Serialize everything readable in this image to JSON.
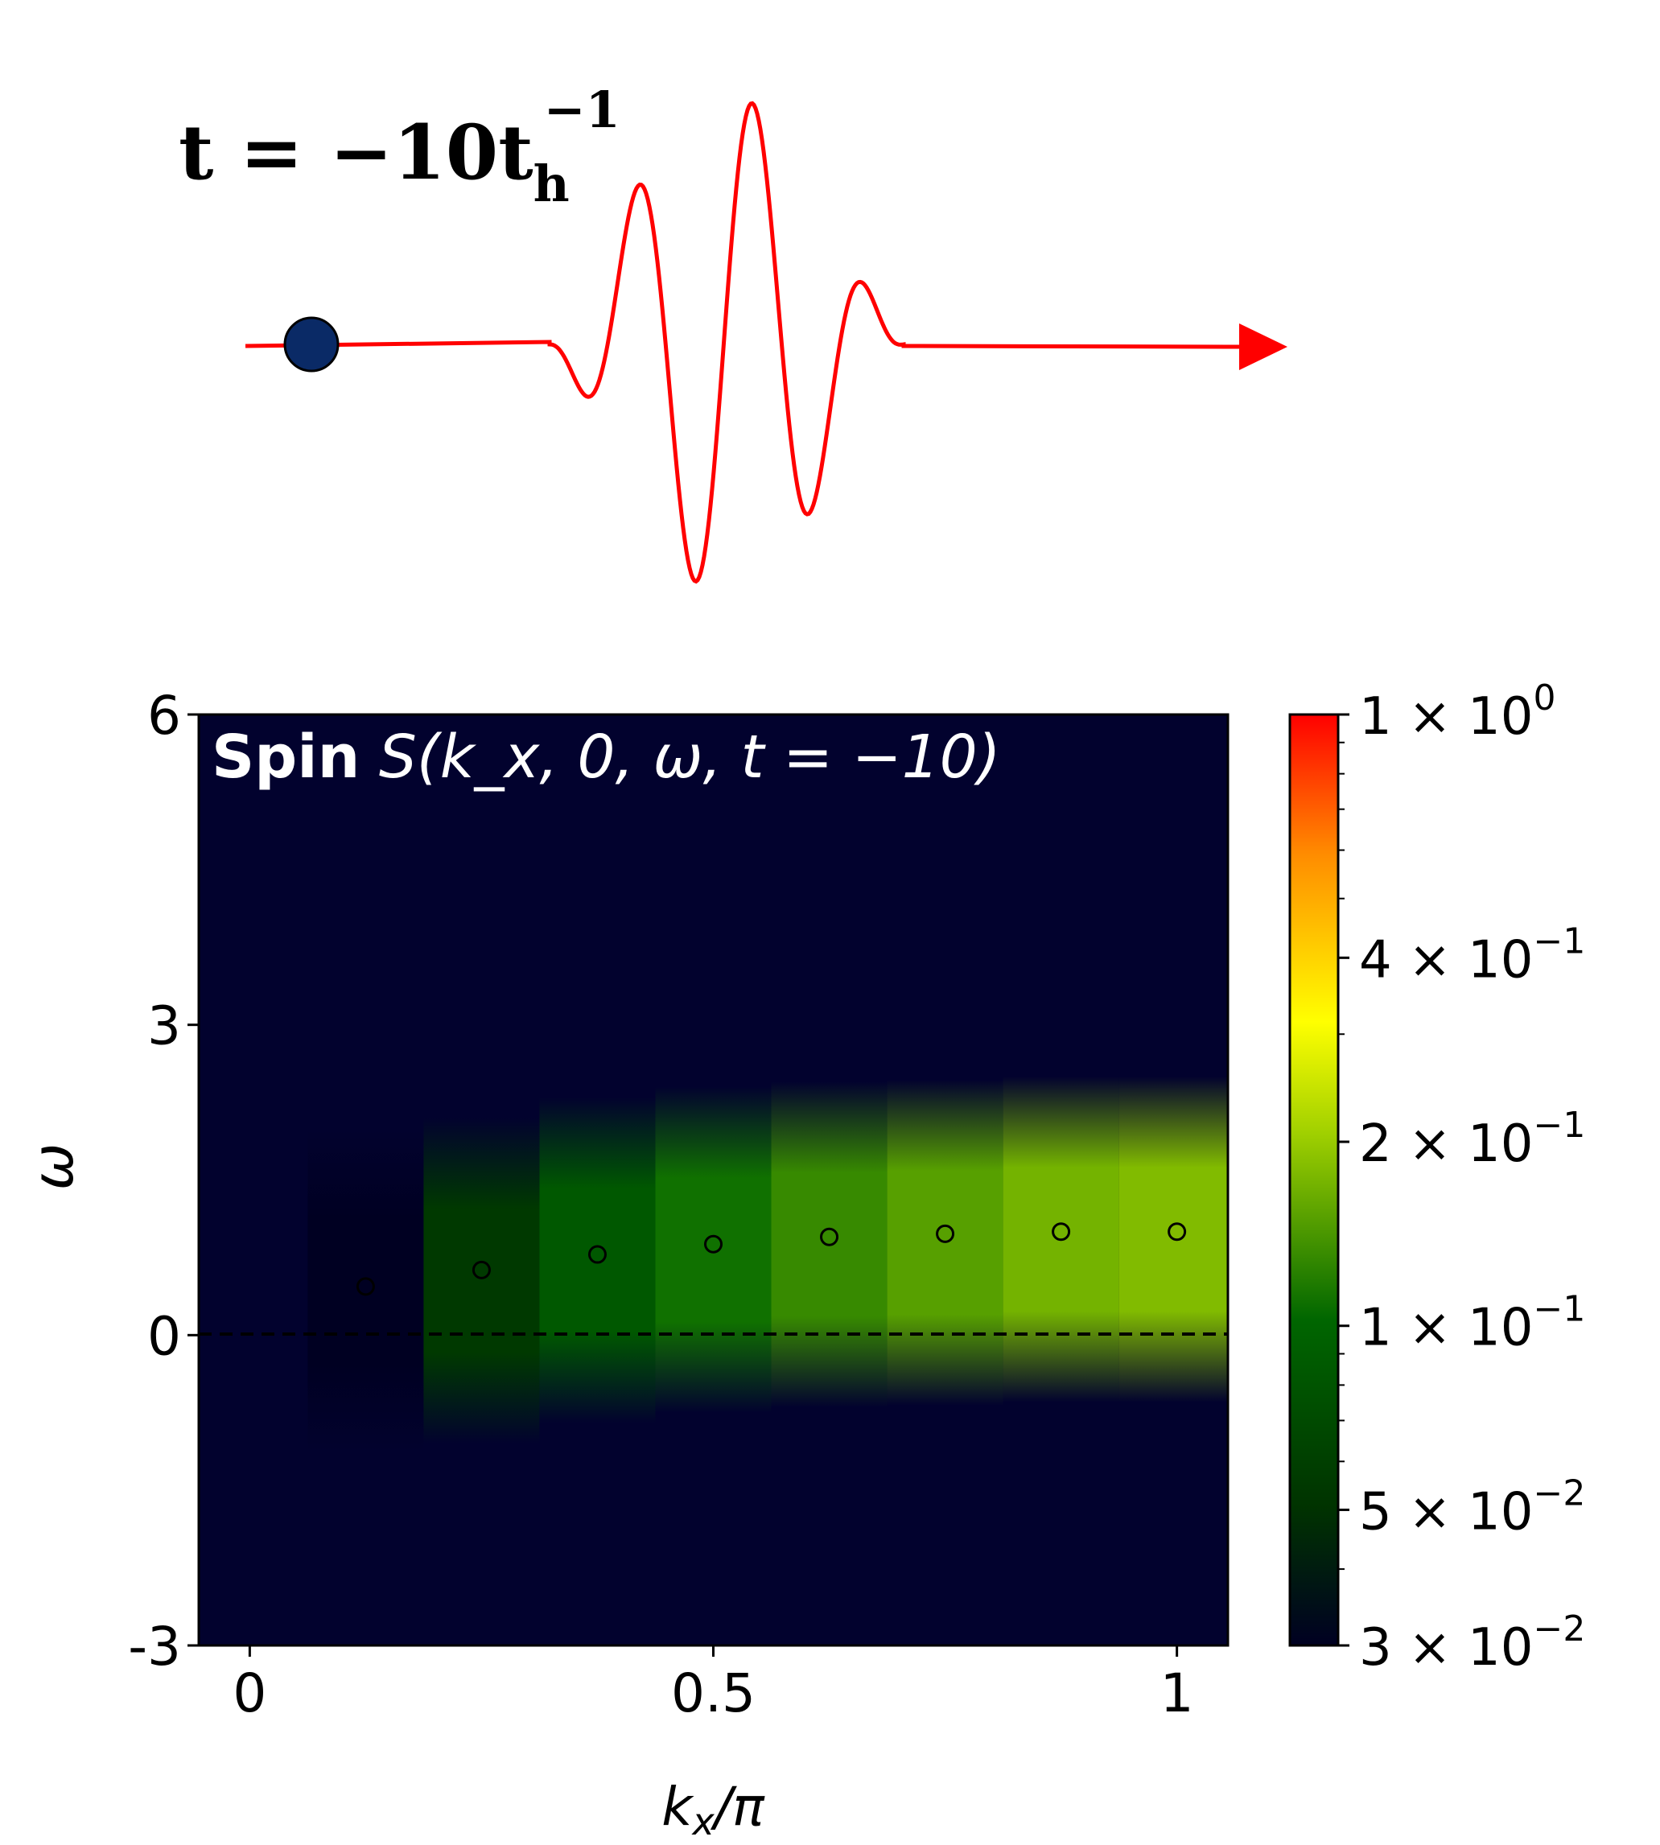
{
  "time_label": {
    "base": "t = −10t",
    "subscript": "h",
    "superscript": "−1"
  },
  "pulse": {
    "line_color": "#ff0000",
    "particle_color": "#0a2a66"
  },
  "chart_data": {
    "type": "heatmap",
    "title": {
      "bold": "Spin",
      "math": "S(k_x, 0, ω, t = −10)"
    },
    "xlabel": "k_x/π",
    "ylabel": "ω",
    "xlim": [
      -0.055,
      1.055
    ],
    "ylim": [
      -3,
      6
    ],
    "x_ticks": [
      0,
      0.5,
      1
    ],
    "x_tick_labels": [
      "0",
      "0.5",
      "1"
    ],
    "y_ticks": [
      -3,
      0,
      3,
      6
    ],
    "y_tick_labels": [
      "-3",
      "0",
      "3",
      "6"
    ],
    "background_color": "#02022e",
    "reference_line": {
      "y": 0,
      "style": "dashed",
      "color": "#000000"
    },
    "columns": [
      {
        "kx": 0.125,
        "center": 0.5,
        "intensity": 0.03
      },
      {
        "kx": 0.25,
        "center": 0.6,
        "intensity": 0.055
      },
      {
        "kx": 0.375,
        "center": 0.8,
        "intensity": 0.085
      },
      {
        "kx": 0.5,
        "center": 0.9,
        "intensity": 0.11
      },
      {
        "kx": 0.625,
        "center": 0.95,
        "intensity": 0.13
      },
      {
        "kx": 0.75,
        "center": 0.97,
        "intensity": 0.15
      },
      {
        "kx": 0.875,
        "center": 1.0,
        "intensity": 0.17
      },
      {
        "kx": 1.0,
        "center": 1.0,
        "intensity": 0.18
      }
    ],
    "markers": {
      "style": "open-circle",
      "x": [
        0.125,
        0.25,
        0.375,
        0.5,
        0.625,
        0.75,
        0.875,
        1.0
      ],
      "y": [
        0.47,
        0.63,
        0.78,
        0.88,
        0.95,
        0.98,
        1.0,
        1.0
      ]
    },
    "colorbar": {
      "scale": "log",
      "range": [
        0.03,
        1
      ],
      "colors": [
        "#000022",
        "#006600",
        "#a0d000",
        "#ffff00",
        "#ff9000",
        "#ff0000"
      ],
      "ticks": [
        0.03,
        0.05,
        0.1,
        0.2,
        0.4,
        1
      ],
      "tick_labels": [
        {
          "mant": "3 × 10",
          "exp": "−2"
        },
        {
          "mant": "5 × 10",
          "exp": "−2"
        },
        {
          "mant": "1 × 10",
          "exp": "−1"
        },
        {
          "mant": "2 × 10",
          "exp": "−1"
        },
        {
          "mant": "4 × 10",
          "exp": "−1"
        },
        {
          "mant": "1 × 10",
          "exp": "0"
        }
      ]
    }
  }
}
